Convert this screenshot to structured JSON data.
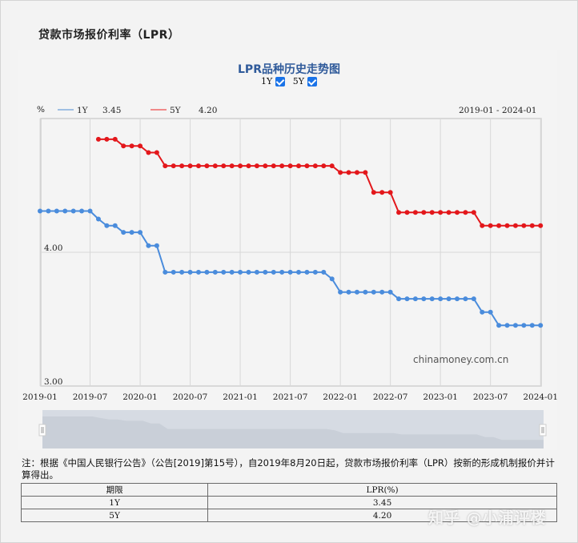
{
  "page": {
    "title": "贷款市场报价利率（LPR）"
  },
  "chart": {
    "title": "LPR品种历史走势图",
    "toggles": [
      {
        "label": "1Y",
        "checked": true
      },
      {
        "label": "5Y",
        "checked": true
      }
    ],
    "unit": "%",
    "legend": [
      {
        "name": "1Y",
        "latest": "3.45",
        "color": "#4a8cdc"
      },
      {
        "name": "5Y",
        "latest": "4.20",
        "color": "#e3171b"
      }
    ],
    "range_label": "2019-01 - 2024-01",
    "watermark": "chinamoney.com.cn",
    "y_ticks": [
      "4.00",
      "3.00"
    ],
    "x_ticks": [
      "2019-01",
      "2019-07",
      "2020-01",
      "2020-07",
      "2021-01",
      "2021-07",
      "2022-01",
      "2022-07",
      "2023-01",
      "2023-07",
      "2024-01"
    ]
  },
  "chart_data": {
    "type": "line",
    "title": "LPR品种历史走势图",
    "xlabel": "",
    "ylabel": "%",
    "ylim": [
      2.95,
      5.0
    ],
    "grid": true,
    "legend_position": "top-left",
    "x": [
      "2019-01",
      "2019-02",
      "2019-03",
      "2019-04",
      "2019-05",
      "2019-06",
      "2019-07",
      "2019-08",
      "2019-09",
      "2019-10",
      "2019-11",
      "2019-12",
      "2020-01",
      "2020-02",
      "2020-03",
      "2020-04",
      "2020-05",
      "2020-06",
      "2020-07",
      "2020-08",
      "2020-09",
      "2020-10",
      "2020-11",
      "2020-12",
      "2021-01",
      "2021-02",
      "2021-03",
      "2021-04",
      "2021-05",
      "2021-06",
      "2021-07",
      "2021-08",
      "2021-09",
      "2021-10",
      "2021-11",
      "2021-12",
      "2022-01",
      "2022-02",
      "2022-03",
      "2022-04",
      "2022-05",
      "2022-06",
      "2022-07",
      "2022-08",
      "2022-09",
      "2022-10",
      "2022-11",
      "2022-12",
      "2023-01",
      "2023-02",
      "2023-03",
      "2023-04",
      "2023-05",
      "2023-06",
      "2023-07",
      "2023-08",
      "2023-09",
      "2023-10",
      "2023-11",
      "2023-12",
      "2024-01"
    ],
    "series": [
      {
        "name": "1Y",
        "color": "#4a8cdc",
        "values": [
          4.31,
          4.31,
          4.31,
          4.31,
          4.31,
          4.31,
          4.31,
          4.25,
          4.2,
          4.2,
          4.15,
          4.15,
          4.15,
          4.05,
          4.05,
          3.85,
          3.85,
          3.85,
          3.85,
          3.85,
          3.85,
          3.85,
          3.85,
          3.85,
          3.85,
          3.85,
          3.85,
          3.85,
          3.85,
          3.85,
          3.85,
          3.85,
          3.85,
          3.85,
          3.85,
          3.8,
          3.7,
          3.7,
          3.7,
          3.7,
          3.7,
          3.7,
          3.7,
          3.65,
          3.65,
          3.65,
          3.65,
          3.65,
          3.65,
          3.65,
          3.65,
          3.65,
          3.65,
          3.55,
          3.55,
          3.45,
          3.45,
          3.45,
          3.45,
          3.45,
          3.45
        ]
      },
      {
        "name": "5Y",
        "color": "#e3171b",
        "values": [
          null,
          null,
          null,
          null,
          null,
          null,
          null,
          4.85,
          4.85,
          4.85,
          4.8,
          4.8,
          4.8,
          4.75,
          4.75,
          4.65,
          4.65,
          4.65,
          4.65,
          4.65,
          4.65,
          4.65,
          4.65,
          4.65,
          4.65,
          4.65,
          4.65,
          4.65,
          4.65,
          4.65,
          4.65,
          4.65,
          4.65,
          4.65,
          4.65,
          4.65,
          4.6,
          4.6,
          4.6,
          4.6,
          4.45,
          4.45,
          4.45,
          4.3,
          4.3,
          4.3,
          4.3,
          4.3,
          4.3,
          4.3,
          4.3,
          4.3,
          4.3,
          4.2,
          4.2,
          4.2,
          4.2,
          4.2,
          4.2,
          4.2,
          4.2
        ]
      }
    ]
  },
  "note": "注：根据《中国人民银行公告》（公告[2019]第15号），自2019年8月20日起，贷款市场报价利率（LPR）按新的形成机制报价并计算得出。",
  "table": {
    "headers": [
      "期限",
      "LPR(%)"
    ],
    "rows": [
      [
        "1Y",
        "3.45"
      ],
      [
        "5Y",
        "4.20"
      ]
    ]
  },
  "overlay_watermark": "知乎 @小浦评楼"
}
